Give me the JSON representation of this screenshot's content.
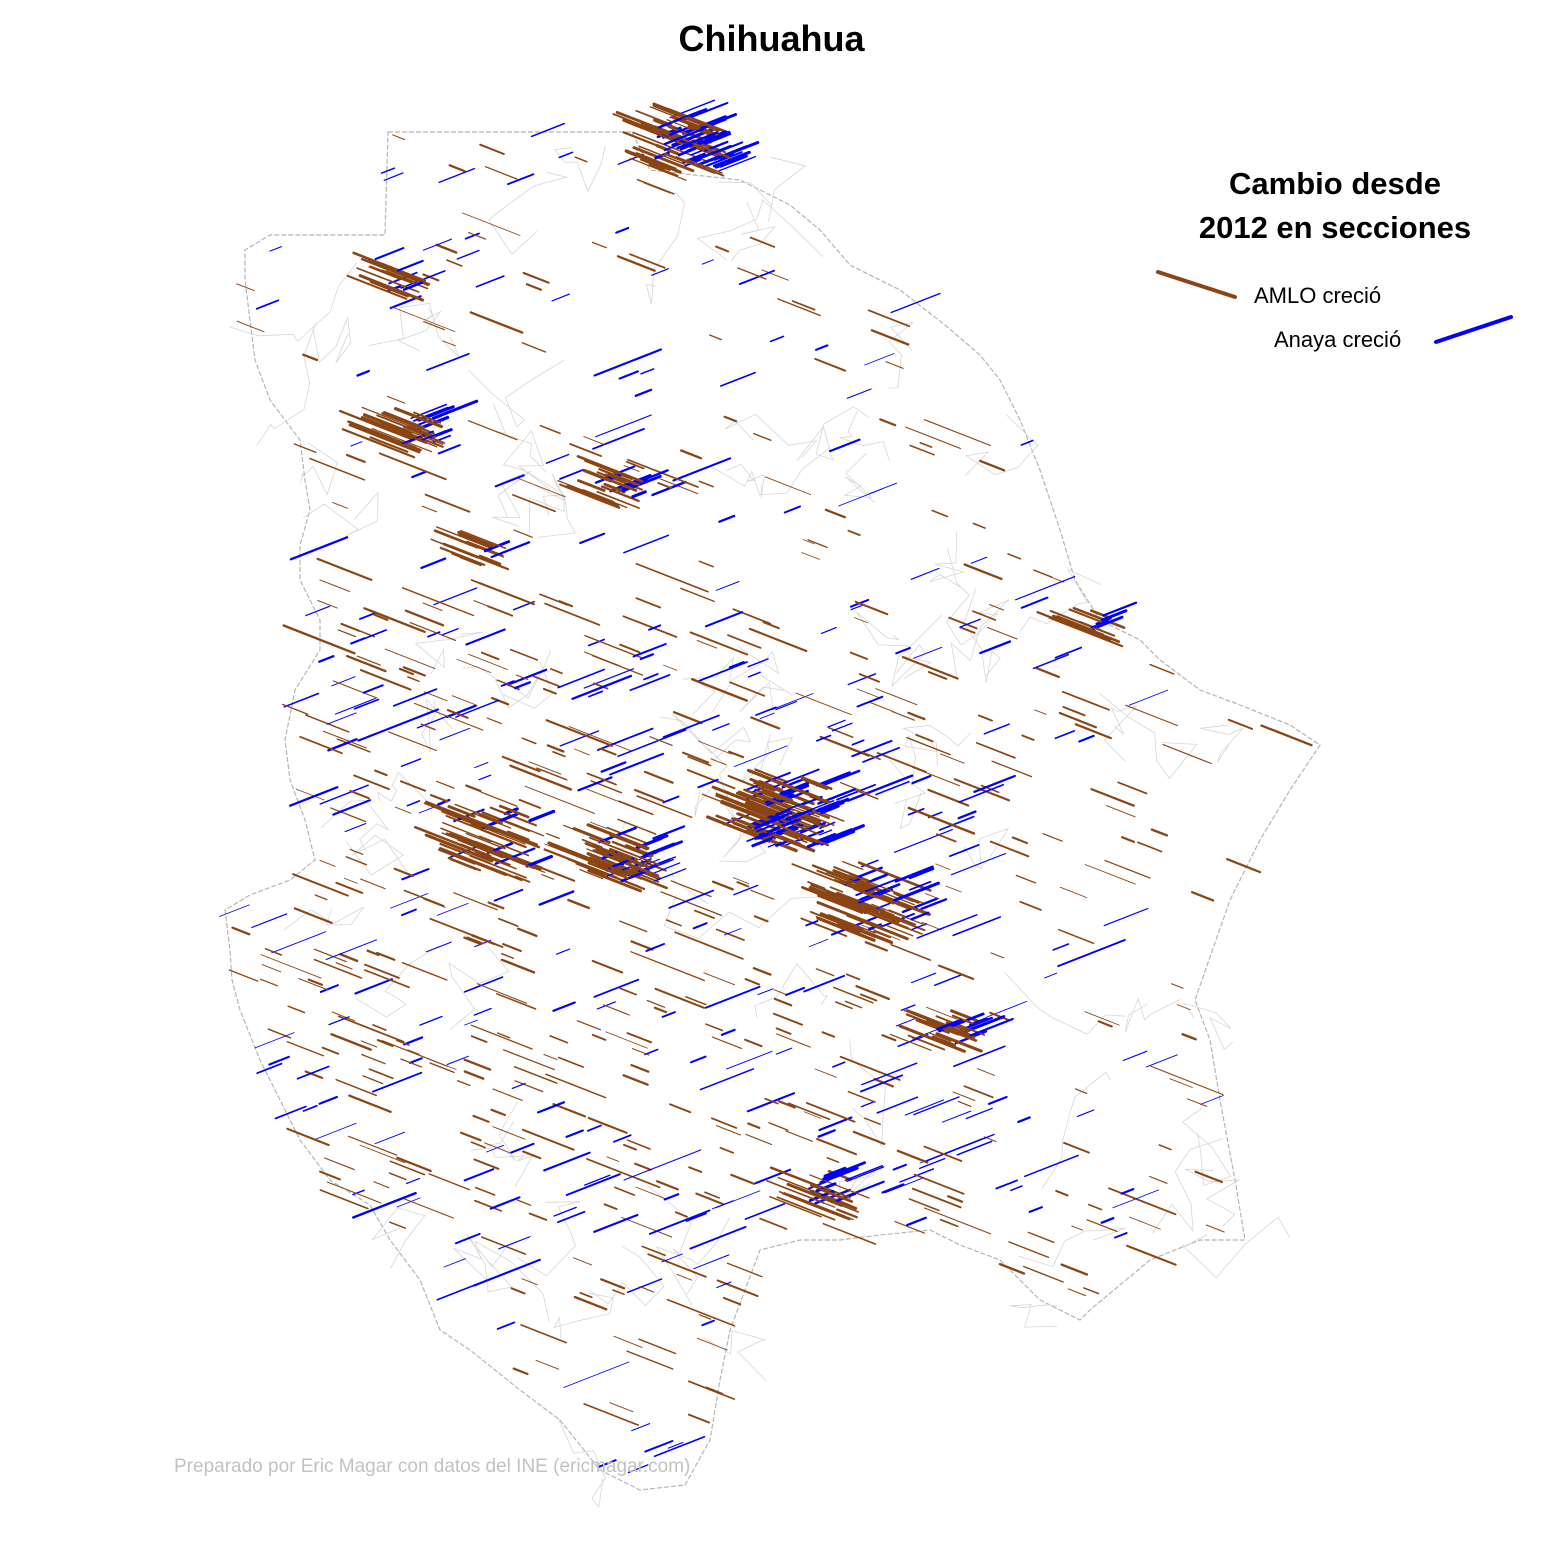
{
  "title": "Chihuahua",
  "legend": {
    "title_line1": "Cambio desde",
    "title_line2": "2012 en secciones",
    "items": [
      {
        "label": "AMLO creció",
        "color": "#8B4513"
      },
      {
        "label": "Anaya creció",
        "color": "#0000FF"
      }
    ]
  },
  "credit": "Preparado por Eric Magar con datos del INE (ericmagar.com)",
  "colors": {
    "amlo": "#8B4513",
    "anaya": "#0000FF",
    "border": "#b5b5b5",
    "municipal": "#d6d6d6"
  }
}
